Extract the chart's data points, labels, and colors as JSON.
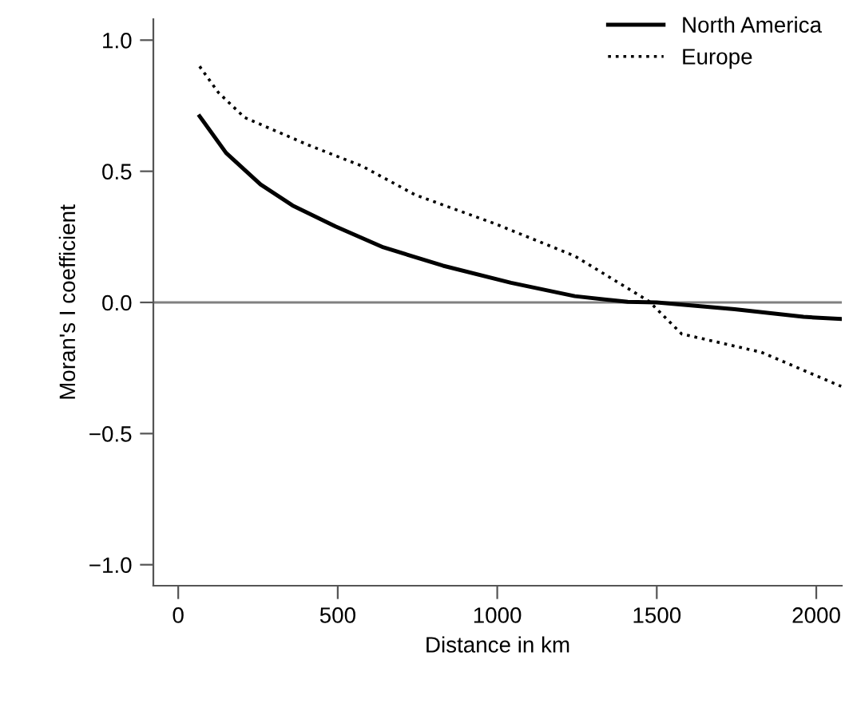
{
  "chart_data": {
    "type": "line",
    "xlabel": "Distance in km",
    "ylabel": "Moran's I coefficient",
    "xlim": [
      -78,
      2080
    ],
    "ylim": [
      -1.08,
      1.08
    ],
    "xticks": [
      0,
      500,
      1000,
      1500,
      2000
    ],
    "yticks": [
      {
        "value": -1.0,
        "label": "−1.0"
      },
      {
        "value": -0.5,
        "label": "−0.5"
      },
      {
        "value": 0.0,
        "label": "0.0"
      },
      {
        "value": 0.5,
        "label": "0.5"
      },
      {
        "value": 1.0,
        "label": "1.0"
      }
    ],
    "legend": "top right",
    "grid": false,
    "marker": "none",
    "ref_lines": [
      {
        "axis": "y",
        "value": 0,
        "color": "#808080"
      }
    ],
    "series": [
      {
        "name": "North America",
        "color": "#000000",
        "line_style": "solid",
        "x": [
          67,
          150,
          258,
          358,
          493,
          643,
          830,
          1043,
          1243,
          1409,
          1500,
          1744,
          1960,
          2078
        ],
        "values": [
          0.71,
          0.57,
          0.45,
          0.37,
          0.29,
          0.21,
          0.14,
          0.075,
          0.024,
          0.002,
          0.0,
          -0.026,
          -0.055,
          -0.063
        ]
      },
      {
        "name": "Europe",
        "color": "#000000",
        "line_style": "dotted",
        "x": [
          67,
          126,
          208,
          408,
          576,
          743,
          993,
          1243,
          1476,
          1578,
          1828,
          2078
        ],
        "values": [
          0.9,
          0.8,
          0.705,
          0.6,
          0.52,
          0.41,
          0.3,
          0.177,
          0.004,
          -0.12,
          -0.19,
          -0.32
        ]
      }
    ]
  }
}
